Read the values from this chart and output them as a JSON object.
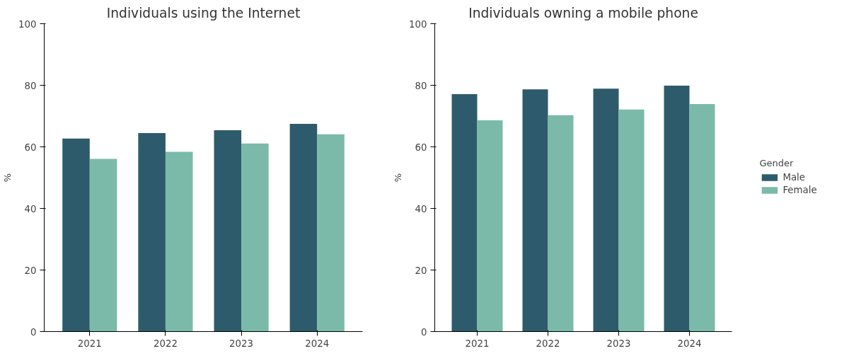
{
  "chart_data": [
    {
      "type": "bar",
      "title": "Individuals using the Internet",
      "ylabel": "%",
      "categories": [
        "2021",
        "2022",
        "2023",
        "2024"
      ],
      "series": [
        {
          "color": "#2d5b6b",
          "values": [
            62.7,
            64.5,
            65.4,
            67.5
          ]
        },
        {
          "color": "#7bbaa8",
          "values": [
            56.1,
            58.4,
            61.1,
            64.1
          ]
        }
      ],
      "ylim": [
        0,
        100
      ],
      "yticks": [
        0,
        20,
        40,
        60,
        80,
        100
      ],
      "grid": false
    },
    {
      "type": "bar",
      "title": "Individuals owning a mobile phone",
      "ylabel": "%",
      "categories": [
        "2021",
        "2022",
        "2023",
        "2024"
      ],
      "series": [
        {
          "name": "Male",
          "color": "#2d5b6b",
          "values": [
            77.1,
            78.7,
            78.9,
            79.9
          ]
        },
        {
          "name": "Female",
          "color": "#7bbaa8",
          "values": [
            68.6,
            70.3,
            72.1,
            73.9
          ]
        }
      ],
      "ylim": [
        0,
        100
      ],
      "yticks": [
        0,
        20,
        40,
        60,
        80,
        100
      ],
      "grid": false,
      "legend": "right",
      "legend_title": "Gender"
    }
  ]
}
